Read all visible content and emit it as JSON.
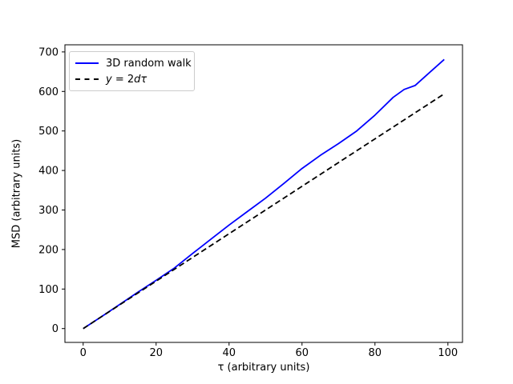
{
  "figure": {
    "background": "#ffffff"
  },
  "chart_data": {
    "type": "line",
    "title": "",
    "xlabel": "τ (arbitrary units)",
    "ylabel": "MSD (arbitrary units)",
    "xlim": [
      -5,
      104
    ],
    "ylim": [
      -35,
      718
    ],
    "xticks": [
      0,
      20,
      40,
      60,
      80,
      100
    ],
    "yticks": [
      0,
      100,
      200,
      300,
      400,
      500,
      600,
      700
    ],
    "grid": false,
    "legend_position": "upper left",
    "series": [
      {
        "name": "3D random walk",
        "color": "#0000ff",
        "style": "solid",
        "width": 1.8,
        "x": [
          0,
          5,
          10,
          15,
          20,
          25,
          30,
          35,
          40,
          45,
          50,
          55,
          60,
          65,
          70,
          75,
          80,
          85,
          88,
          91,
          95,
          99
        ],
        "y": [
          0,
          30,
          61,
          92,
          122,
          153,
          190,
          226,
          262,
          296,
          330,
          367,
          405,
          438,
          468,
          500,
          540,
          585,
          605,
          615,
          648,
          681
        ]
      },
      {
        "name": "y = 2dτ",
        "color": "#000000",
        "style": "dashed",
        "width": 1.8,
        "x": [
          0,
          99
        ],
        "y": [
          0,
          594
        ]
      }
    ]
  },
  "legend": {
    "items": [
      {
        "label": "3D random walk",
        "marker": "blue-solid-line"
      },
      {
        "label": "y = 2dτ",
        "marker": "black-dashed-line",
        "math_parts": [
          {
            "t": "y",
            "italic": true
          },
          {
            "t": " = 2",
            "italic": false
          },
          {
            "t": "d",
            "italic": true
          },
          {
            "t": "τ",
            "italic": true
          }
        ]
      }
    ]
  }
}
